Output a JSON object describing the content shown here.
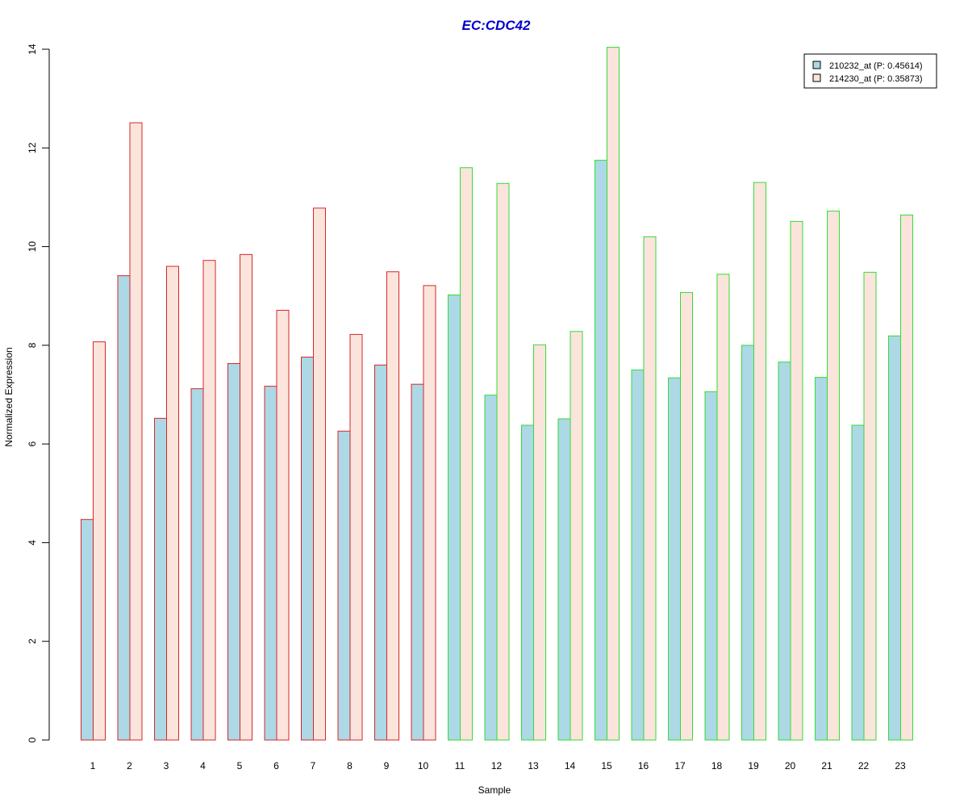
{
  "chart_data": {
    "type": "bar",
    "title": "EC:CDC42",
    "xlabel": "Sample",
    "ylabel": "Normalized Expression",
    "ylim": [
      0,
      14
    ],
    "yticks": [
      0,
      2,
      4,
      6,
      8,
      10,
      12,
      14
    ],
    "categories": [
      "1",
      "2",
      "3",
      "4",
      "5",
      "6",
      "7",
      "8",
      "9",
      "10",
      "11",
      "12",
      "13",
      "14",
      "15",
      "16",
      "17",
      "18",
      "19",
      "20",
      "21",
      "22",
      "23"
    ],
    "series": [
      {
        "name": "210232_at (P: 0.45614)",
        "fill": "#add8e6",
        "values": [
          4.47,
          9.41,
          6.52,
          7.12,
          7.63,
          7.17,
          7.76,
          6.26,
          7.6,
          7.21,
          9.02,
          6.99,
          6.38,
          6.51,
          11.75,
          7.5,
          7.34,
          7.06,
          8.0,
          7.66,
          7.35,
          6.38,
          8.19
        ]
      },
      {
        "name": "214230_at (P: 0.35873)",
        "fill": "#fbe4dc",
        "values": [
          8.07,
          12.51,
          9.6,
          9.72,
          9.84,
          8.71,
          10.78,
          8.22,
          9.49,
          9.21,
          11.6,
          11.28,
          8.01,
          8.28,
          14.04,
          10.2,
          9.07,
          9.44,
          11.3,
          10.51,
          10.72,
          9.48,
          10.64
        ]
      }
    ],
    "group_border_colors": [
      "#d62728",
      "#d62728",
      "#d62728",
      "#d62728",
      "#d62728",
      "#d62728",
      "#d62728",
      "#d62728",
      "#d62728",
      "#d62728",
      "#33dd33",
      "#33dd33",
      "#33dd33",
      "#33dd33",
      "#33dd33",
      "#33dd33",
      "#33dd33",
      "#33dd33",
      "#33dd33",
      "#33dd33",
      "#33dd33",
      "#33dd33",
      "#33dd33"
    ],
    "title_color": "#0000cc",
    "legend_position": "top-right",
    "grid": false
  }
}
